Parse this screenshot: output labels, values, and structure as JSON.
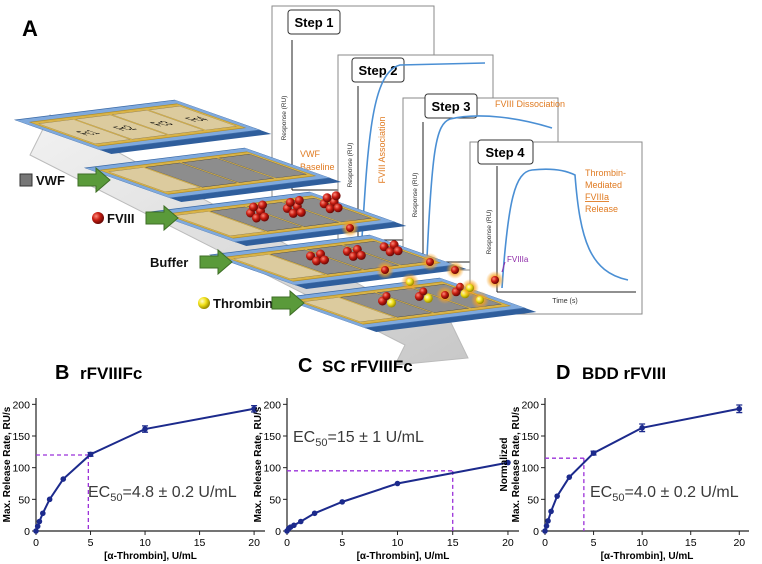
{
  "panel_a": {
    "label": "A",
    "flow_cells": [
      "Fc1",
      "Fc2",
      "Fc3",
      "Fc4"
    ],
    "injections": [
      "VWF",
      "FVIII",
      "Buffer",
      "Thrombin"
    ],
    "steps": [
      {
        "title": "Step 1",
        "y_label": "Response (RU)",
        "notes": [
          "VWF",
          "Baseline"
        ]
      },
      {
        "title": "Step 2",
        "y_label": "Response (RU)",
        "notes": [
          "FVIII Association"
        ]
      },
      {
        "title": "Step 3",
        "y_label": "Response (RU)",
        "notes": [
          "FVIII Dissociation"
        ]
      },
      {
        "title": "Step 4",
        "y_label": "Response (RU)",
        "notes": [
          "Thrombin-",
          "Mediated",
          "FVIIIa",
          "Release"
        ],
        "marker": "FVIIIa",
        "x_label": "Time (s)"
      }
    ]
  },
  "chart_data": [
    {
      "type": "line",
      "panel": "B",
      "title": "rFVIIIFc",
      "y_label": [
        "Max. Release Rate, RU/s"
      ],
      "x_label": "[α-Thrombin], U/mL",
      "annotation": {
        "lead": "EC",
        "sub": "50",
        "rest": "=4.8 ± 0.2 U/mL"
      },
      "x": [
        0,
        0.156,
        0.3125,
        0.625,
        1.25,
        2.5,
        5,
        10,
        20
      ],
      "series": [
        {
          "color": "#1c2a8c",
          "values": [
            0,
            7.5,
            15,
            28,
            50,
            82,
            121,
            161,
            193
          ],
          "errors": [
            null,
            null,
            null,
            null,
            null,
            null,
            3,
            5,
            5
          ]
        }
      ],
      "reference": {
        "x": 4.8,
        "y": 120,
        "color": "#9b30d9"
      },
      "xlim": [
        0,
        21
      ],
      "ylim": [
        0,
        210
      ],
      "xticks": [
        0,
        5,
        10,
        15,
        20
      ],
      "yticks": [
        0,
        50,
        100,
        150,
        200
      ]
    },
    {
      "type": "line",
      "panel": "C",
      "title": "SC rFVIIIFc",
      "y_label": [
        "Max. Release Rate, RU/s"
      ],
      "x_label": "[α-Thrombin], U/mL",
      "annotation": {
        "lead": "EC",
        "sub": "50",
        "rest": "=15 ± 1 U/mL"
      },
      "x": [
        0,
        0.156,
        0.3125,
        0.625,
        1.25,
        2.5,
        5,
        10,
        20
      ],
      "series": [
        {
          "color": "#1c2a8c",
          "values": [
            0,
            4,
            6,
            9,
            15,
            28,
            46,
            75,
            108
          ],
          "errors": [
            null,
            null,
            null,
            null,
            null,
            null,
            null,
            null,
            null
          ]
        }
      ],
      "reference": {
        "x": 15,
        "y": 95,
        "color": "#9b30d9"
      },
      "xlim": [
        0,
        21
      ],
      "ylim": [
        0,
        210
      ],
      "xticks": [
        0,
        5,
        10,
        15,
        20
      ],
      "yticks": [
        0,
        50,
        100,
        150,
        200
      ]
    },
    {
      "type": "line",
      "panel": "D",
      "title": "BDD rFVIII",
      "y_label": [
        "Normalized",
        "Max. Release Rate, RU/s"
      ],
      "x_label": "[α-Thrombin], U/mL",
      "annotation": {
        "lead": "EC",
        "sub": "50",
        "rest": "=4.0 ± 0.2 U/mL"
      },
      "x": [
        0,
        0.156,
        0.3125,
        0.625,
        1.25,
        2.5,
        5,
        10,
        20
      ],
      "series": [
        {
          "color": "#1c2a8c",
          "values": [
            0,
            8,
            16,
            31,
            55,
            85,
            123,
            163,
            193
          ],
          "errors": [
            null,
            null,
            null,
            null,
            null,
            null,
            3,
            6,
            6
          ]
        }
      ],
      "reference": {
        "x": 4,
        "y": 115,
        "color": "#9b30d9"
      },
      "xlim": [
        0,
        21
      ],
      "ylim": [
        0,
        210
      ],
      "xticks": [
        0,
        5,
        10,
        15,
        20
      ],
      "yticks": [
        0,
        50,
        100,
        150,
        200
      ]
    }
  ]
}
